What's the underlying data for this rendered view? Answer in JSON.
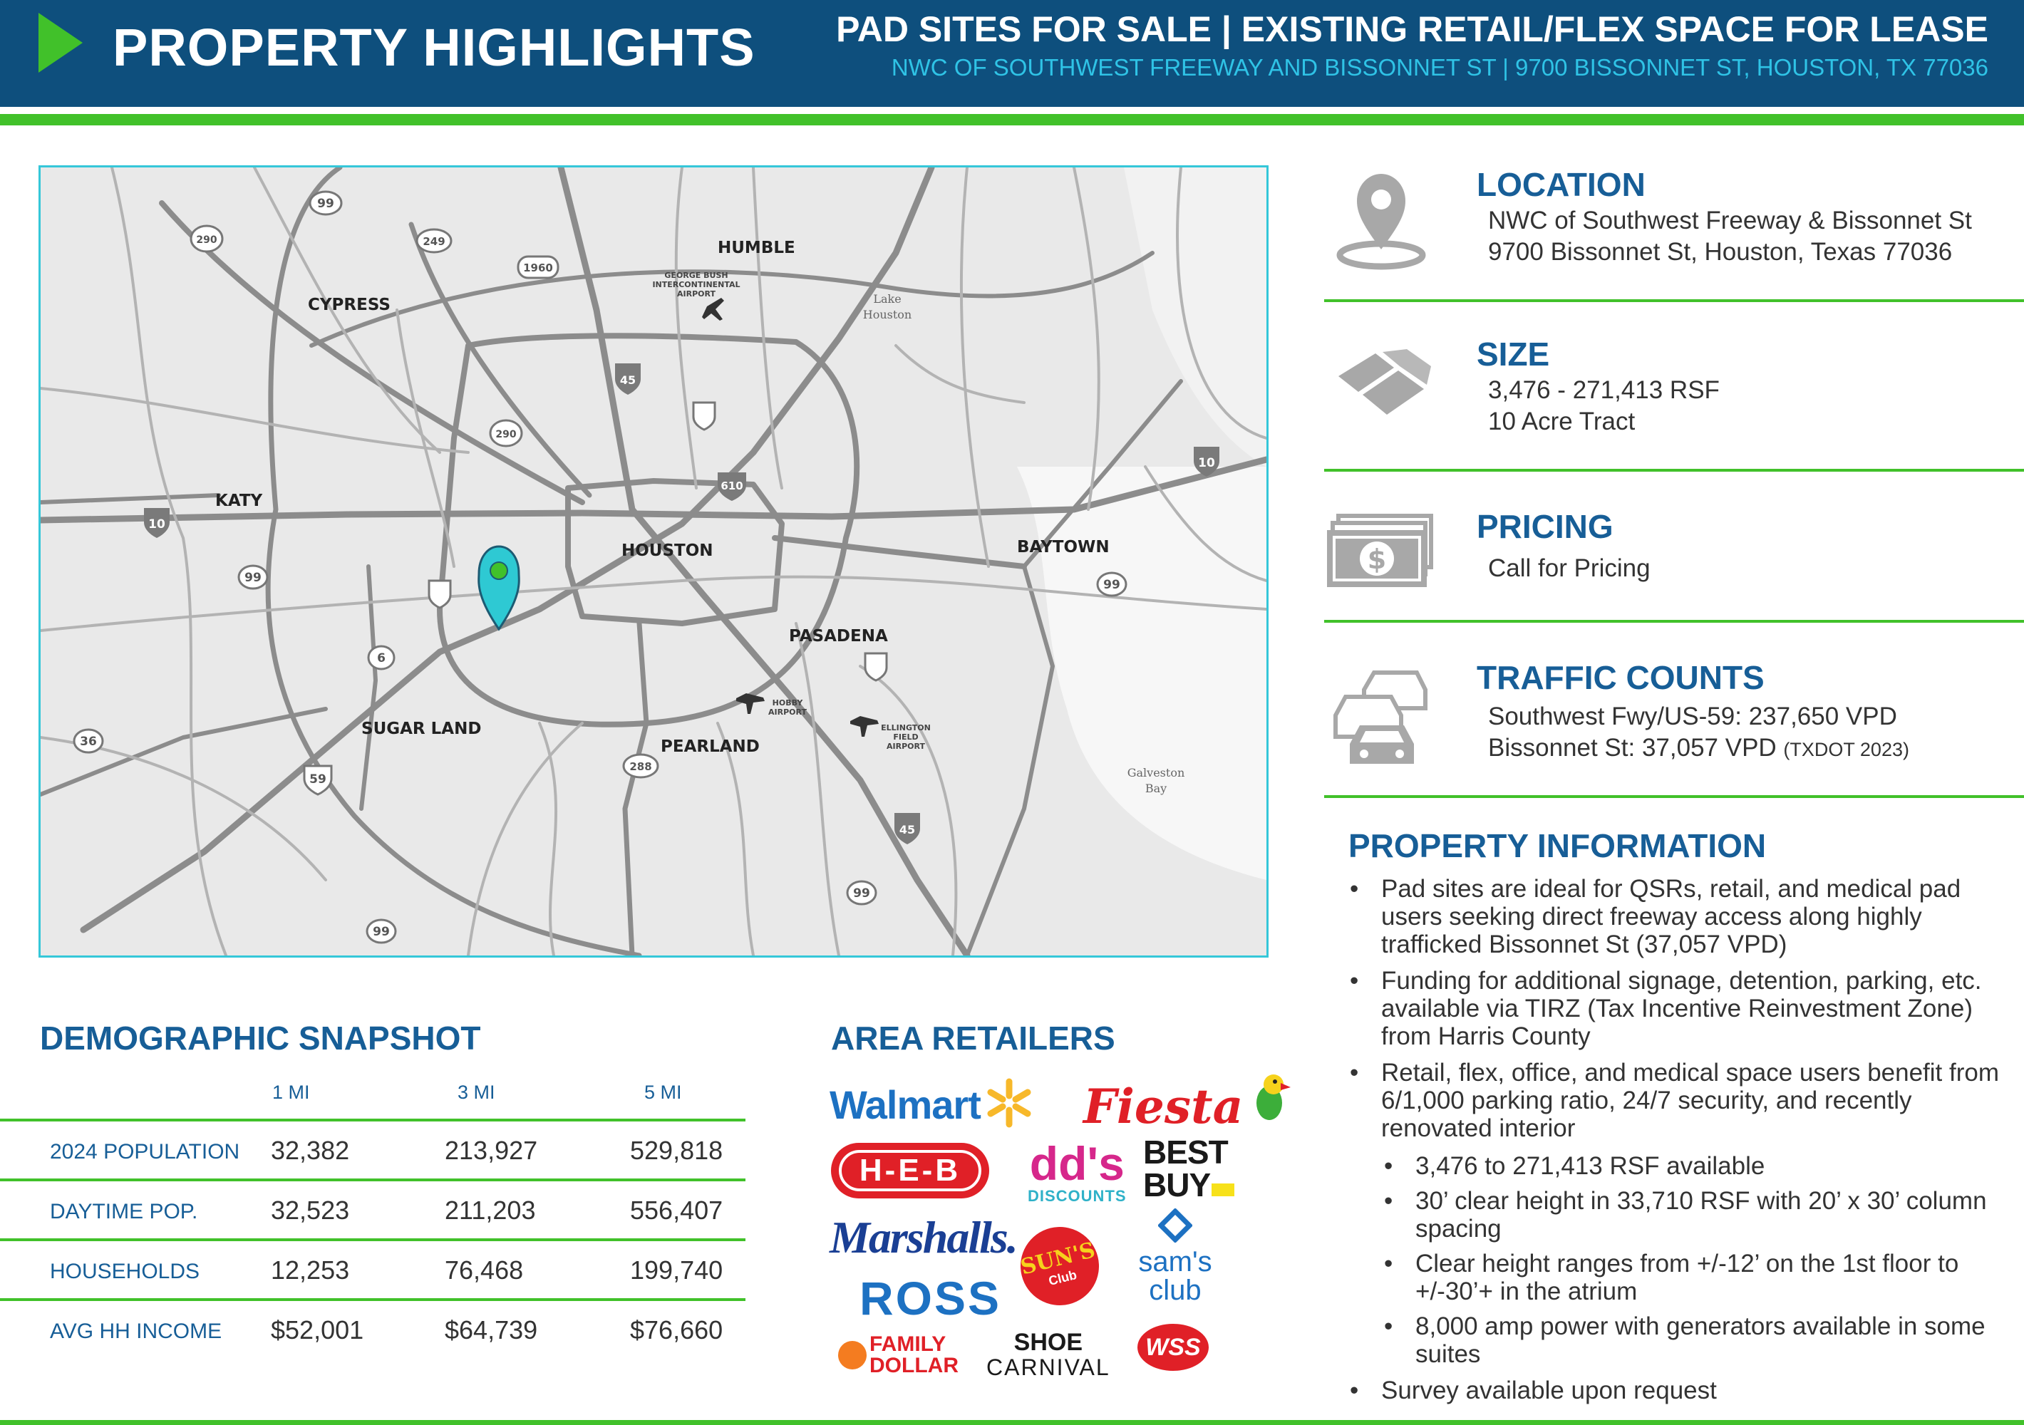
{
  "header": {
    "title": "PROPERTY HIGHLIGHTS",
    "subtitle": "PAD SITES FOR SALE | EXISTING RETAIL/FLEX SPACE FOR LEASE",
    "address_line": "NWC OF SOUTHWEST FREEWAY AND BISSONNET ST | 9700 BISSONNET ST, HOUSTON, TX 77036"
  },
  "colors": {
    "header_bg": "#0e4f7d",
    "accent_green": "#41c12a",
    "title_blue": "#175e97",
    "address_cyan": "#2fc3e6",
    "map_border": "#35c7d9",
    "pin_teal": "#2ec9d3"
  },
  "map": {
    "labels": {
      "humble": "HUMBLE",
      "cypress": "CYPRESS",
      "katy": "KATY",
      "houston": "HOUSTON",
      "baytown": "BAYTOWN",
      "pasadena": "PASADENA",
      "sugar_land": "SUGAR LAND",
      "pearland": "PEARLAND",
      "iah_1": "GEORGE BUSH",
      "iah_2": "INTERCONTINENTAL",
      "iah_3": "AIRPORT",
      "lake_1": "Lake",
      "lake_2": "Houston",
      "hobby_1": "HOBBY",
      "hobby_2": "AIRPORT",
      "ellington_1": "ELLINGTON",
      "ellington_2": "FIELD",
      "ellington_3": "AIRPORT",
      "bay_1": "Galveston",
      "bay_2": "Bay"
    },
    "shields": {
      "s99a": "99",
      "s290a": "290",
      "s249": "249",
      "s1960": "1960",
      "s45a": "45",
      "s290b": "290",
      "s610": "610",
      "s10a": "10",
      "s10b": "10",
      "s99b": "99",
      "s99c": "99",
      "s6": "6",
      "s36": "36",
      "s59": "59",
      "s288": "288",
      "s45b": "45",
      "s99d": "99",
      "s99e": "99"
    }
  },
  "features": {
    "location": {
      "title": "LOCATION",
      "line1": "NWC of Southwest Freeway & Bissonnet St",
      "line2": "9700 Bissonnet St, Houston, Texas 77036",
      "icon": "location-pin-icon"
    },
    "size": {
      "title": "SIZE",
      "line1": "3,476 - 271,413 RSF",
      "line2": "10 Acre Tract",
      "icon": "parcel-icon"
    },
    "pricing": {
      "title": "PRICING",
      "line1": "Call for Pricing",
      "icon": "money-icon"
    },
    "traffic": {
      "title": "TRAFFIC COUNTS",
      "line1": "Southwest Fwy/US-59: 237,650 VPD",
      "line2": "Bissonnet St: 37,057 VPD",
      "note": "(TXDOT 2023)",
      "icon": "cars-icon"
    }
  },
  "property_info": {
    "title": "PROPERTY INFORMATION",
    "items": [
      "Pad sites are ideal for QSRs, retail, and medical pad users seeking direct freeway access along highly trafficked Bissonnet St (37,057 VPD)",
      "Funding for additional signage, detention, parking, etc. available via TIRZ (Tax Incentive Reinvestment Zone) from Harris County",
      "Retail, flex, office, and medical space users benefit from 6/1,000 parking ratio, 24/7 security, and recently renovated interior",
      "Survey available upon request"
    ],
    "sub_items": [
      "3,476 to 271,413 RSF available",
      "30’ clear height in 33,710 RSF with 20’ x 30’ column spacing",
      "Clear height ranges from +/-12’ on the 1st floor to +/-30’+ in the atrium",
      "8,000 amp power with generators available in some suites"
    ]
  },
  "demographics": {
    "title": "DEMOGRAPHIC SNAPSHOT",
    "columns": [
      "1 MI",
      "3 MI",
      "5 MI"
    ],
    "rows": [
      {
        "label": "2024 POPULATION",
        "values": [
          "32,382",
          "213,927",
          "529,818"
        ]
      },
      {
        "label": "DAYTIME POP.",
        "values": [
          "32,523",
          "211,203",
          "556,407"
        ]
      },
      {
        "label": "HOUSEHOLDS",
        "values": [
          "12,253",
          "76,468",
          "199,740"
        ]
      },
      {
        "label": "AVG HH INCOME",
        "values": [
          "$52,001",
          "$64,739",
          "$76,660"
        ]
      }
    ]
  },
  "retailers": {
    "title": "AREA RETAILERS",
    "logos": {
      "walmart": "Walmart",
      "fiesta": "Fiesta",
      "heb": "H-E-B",
      "dds_1": "dd's",
      "dds_2": "DISCOUNTS",
      "bestbuy_1": "BEST",
      "bestbuy_2": "BUY",
      "marshalls": "Marshalls.",
      "suns_1": "SUN'S",
      "suns_2": "Club",
      "sams_1": "sam's",
      "sams_2": "club",
      "ross": "ROSS",
      "familydollar_1": "FAMILY",
      "familydollar_2": "DOLLAR",
      "shoecarnival_1": "SHOE",
      "shoecarnival_2": "CARNIVAL",
      "wss": "WSS"
    }
  }
}
